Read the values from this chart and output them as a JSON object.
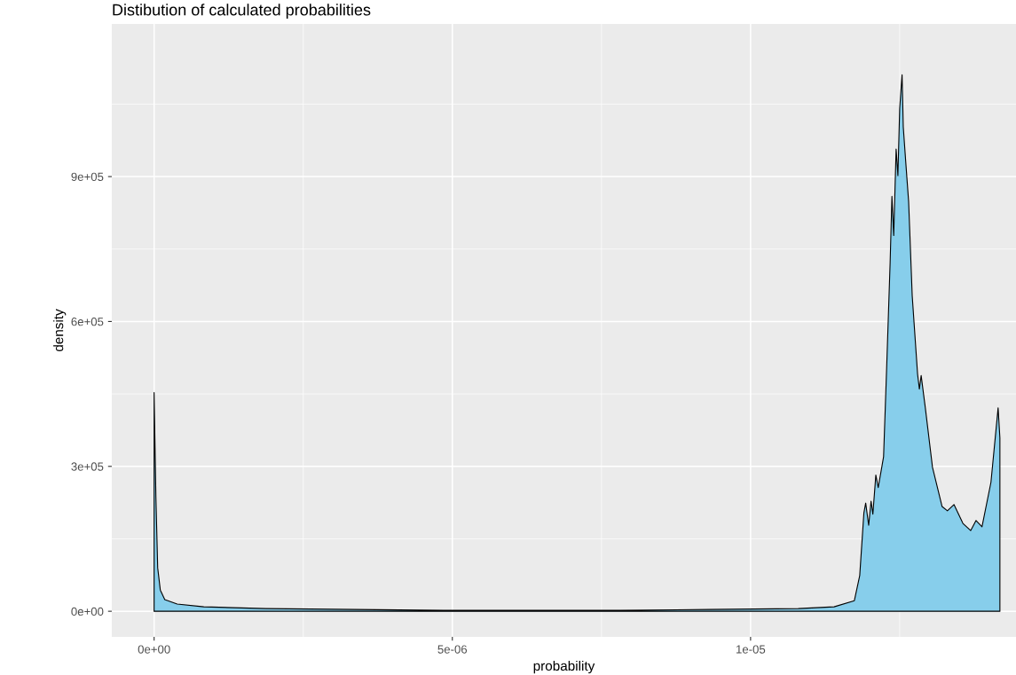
{
  "chart_data": {
    "type": "area",
    "title": "Distibution of calculated probabilities",
    "xlabel": "probability",
    "ylabel": "density",
    "xlim": [
      -7.1e-07,
      1.445e-05
    ],
    "ylim": [
      -53000,
      1216000
    ],
    "xticks": [
      {
        "value": 0,
        "label": "0e+00"
      },
      {
        "value": 2.5e-06,
        "label": null
      },
      {
        "value": 5e-06,
        "label": "5e-06"
      },
      {
        "value": 7.5e-06,
        "label": null
      },
      {
        "value": 1e-05,
        "label": "1e-05"
      },
      {
        "value": 1.25e-05,
        "label": null
      }
    ],
    "yticks": [
      {
        "value": 0,
        "label": "0e+00"
      },
      {
        "value": 150000,
        "label": null
      },
      {
        "value": 300000,
        "label": "3e+05"
      },
      {
        "value": 450000,
        "label": null
      },
      {
        "value": 600000,
        "label": "6e+05"
      },
      {
        "value": 750000,
        "label": null
      },
      {
        "value": 900000,
        "label": "9e+05"
      },
      {
        "value": 1050000,
        "label": null
      }
    ],
    "grid": true,
    "series": [
      {
        "color": "#87ceeb",
        "x": [
          0,
          3e-08,
          6e-08,
          1.04e-07,
          1.79e-07,
          3.87e-07,
          8.33e-07,
          1.875e-06,
          3.363e-06,
          4.851e-06,
          6.339e-06,
          7.827e-06,
          9.315e-06,
          1.08e-05,
          1.14e-05,
          1.174e-05,
          1.183e-05,
          1.19e-05,
          1.193e-05,
          1.198e-05,
          1.202e-05,
          1.205e-05,
          1.21e-05,
          1.214e-05,
          1.223e-05,
          1.228e-05,
          1.234e-05,
          1.237e-05,
          1.24e-05,
          1.244e-05,
          1.247e-05,
          1.25e-05,
          1.254e-05,
          1.256e-05,
          1.26e-05,
          1.265e-05,
          1.271e-05,
          1.28e-05,
          1.283e-05,
          1.286e-05,
          1.293e-05,
          1.305e-05,
          1.321e-05,
          1.33e-05,
          1.341e-05,
          1.356e-05,
          1.369e-05,
          1.378e-05,
          1.388e-05,
          1.403e-05,
          1.415e-05,
          1.418e-05
        ],
        "values": [
          453000,
          237000,
          90000,
          44000,
          24000,
          15000,
          9200,
          5500,
          3700,
          1800,
          1800,
          1800,
          3700,
          5500,
          9200,
          22000,
          74000,
          204000,
          224000,
          178000,
          228000,
          201000,
          282000,
          256000,
          320000,
          499000,
          723000,
          859000,
          778000,
          957000,
          902000,
          1041000,
          1111000,
          1003000,
          933000,
          848000,
          653000,
          491000,
          460000,
          488000,
          421000,
          298000,
          217000,
          208000,
          221000,
          182000,
          167000,
          188000,
          175000,
          267000,
          421000,
          359000
        ]
      }
    ]
  }
}
